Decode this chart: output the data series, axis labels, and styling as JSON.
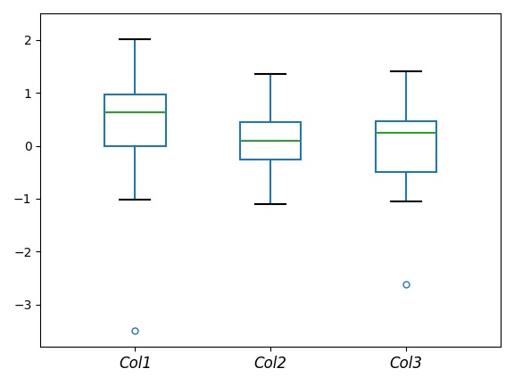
{
  "columns": [
    "Col1",
    "Col2",
    "Col3"
  ],
  "box_stats": [
    {
      "med": 0.63,
      "q1": 0.0,
      "q3": 0.96,
      "whislo": -1.02,
      "whishi": 2.02,
      "fliers": [
        -3.5
      ]
    },
    {
      "med": 0.09,
      "q1": -0.26,
      "q3": 0.44,
      "whislo": -1.1,
      "whishi": 1.35,
      "fliers": []
    },
    {
      "med": 0.24,
      "q1": -0.5,
      "q3": 0.46,
      "whislo": -1.06,
      "whishi": 1.4,
      "fliers": [
        -2.62
      ]
    }
  ],
  "box_color": "#1f77b4",
  "median_color": "#2ca02c",
  "cap_color": "#000000",
  "background_color": "#ffffff",
  "ylim": [
    -3.8,
    2.5
  ],
  "yticks": [
    -3,
    -2,
    -1,
    0,
    1,
    2
  ],
  "figsize": [
    5.76,
    4.32
  ],
  "dpi": 100
}
